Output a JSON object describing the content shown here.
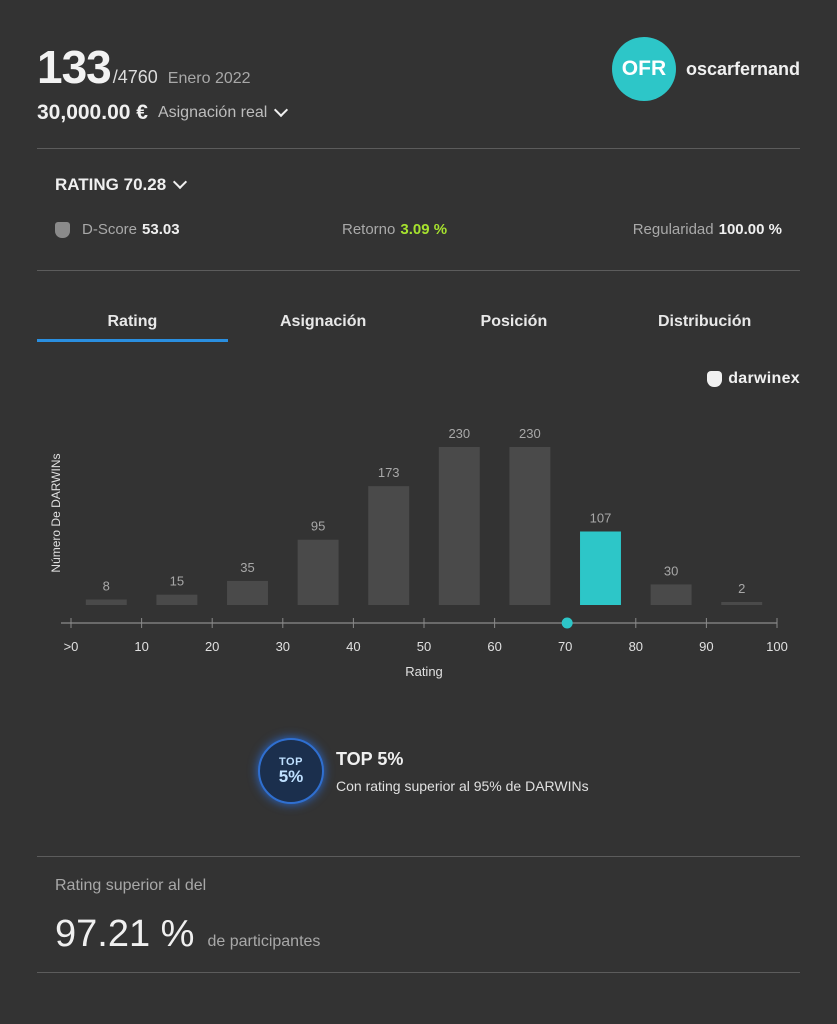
{
  "header": {
    "rank": "133",
    "rank_total": "/4760",
    "period": "Enero 2022",
    "amount": "30,000.00 €",
    "allocation_label": "Asignación real"
  },
  "user": {
    "initials": "OFR",
    "name": "oscarfernand",
    "avatar_color": "#2dc6c8"
  },
  "rating": {
    "title": "RATING 70.28",
    "dscore_label": "D-Score",
    "dscore_value": "53.03",
    "return_label": "Retorno",
    "return_value": "3.09 %",
    "regularity_label": "Regularidad",
    "regularity_value": "100.00 %"
  },
  "tabs": [
    {
      "label": "Rating",
      "active": true
    },
    {
      "label": "Asignación",
      "active": false
    },
    {
      "label": "Posición",
      "active": false
    },
    {
      "label": "Distribución",
      "active": false
    }
  ],
  "brand": {
    "name": "darwinex",
    "icon": "owl-icon"
  },
  "chart_data": {
    "type": "bar",
    "categories": [
      "0-10",
      "10-20",
      "20-30",
      "30-40",
      "40-50",
      "50-60",
      "60-70",
      "70-80",
      "80-90",
      "90-100"
    ],
    "values": [
      8,
      15,
      35,
      95,
      173,
      230,
      230,
      107,
      30,
      2
    ],
    "highlight_index": 7,
    "marker_value": 70.28,
    "x_ticks": [
      ">0",
      "10",
      "20",
      "30",
      "40",
      "50",
      "60",
      "70",
      "80",
      "90",
      "100"
    ],
    "xlabel": "Rating",
    "ylabel": "Número De DARWINs",
    "xlim": [
      0,
      100
    ],
    "ylim": [
      0,
      230
    ],
    "bar_color": "#4a4a4a",
    "highlight_color": "#2dc6c8",
    "grid": false
  },
  "badge": {
    "top": "TOP",
    "pct": "5%",
    "title": "TOP 5%",
    "description": "Con rating superior al 95% de DARWINs"
  },
  "footer": {
    "label": "Rating superior al del",
    "value": "97.21 %",
    "suffix": "de participantes"
  }
}
